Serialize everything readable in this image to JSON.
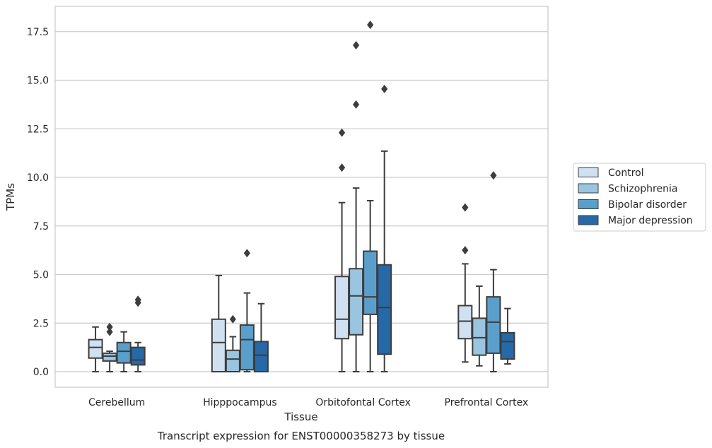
{
  "chart_data": {
    "type": "box",
    "caption": "Transcript expression for ENST00000358273 by tissue",
    "xlabel": "Tissue",
    "ylabel": "TPMs",
    "ylim": [
      -0.8,
      18.8
    ],
    "yticks": [
      0.0,
      2.5,
      5.0,
      7.5,
      10.0,
      12.5,
      15.0,
      17.5
    ],
    "ytick_labels": [
      "0.0",
      "2.5",
      "5.0",
      "7.5",
      "10.0",
      "12.5",
      "15.0",
      "17.5"
    ],
    "grid": "horizontal",
    "legend_position": "right",
    "categories": [
      "Cerebellum",
      "Hipppocampus",
      "Orbitofontal Cortex",
      "Prefrontal Cortex"
    ],
    "series": [
      {
        "name": "Control",
        "color": "#d0e0f1",
        "boxes": [
          {
            "whisker_low": 0.0,
            "q1": 0.7,
            "median": 1.25,
            "q3": 1.65,
            "whisker_high": 2.3,
            "outliers": []
          },
          {
            "whisker_low": 0.0,
            "q1": 0.0,
            "median": 1.5,
            "q3": 2.7,
            "whisker_high": 4.95,
            "outliers": []
          },
          {
            "whisker_low": 0.0,
            "q1": 1.7,
            "median": 2.7,
            "q3": 4.9,
            "whisker_high": 8.7,
            "outliers": [
              10.5,
              12.3
            ]
          },
          {
            "whisker_low": 0.5,
            "q1": 1.7,
            "median": 2.6,
            "q3": 3.4,
            "whisker_high": 5.55,
            "outliers": [
              6.25,
              8.45
            ]
          }
        ]
      },
      {
        "name": "Schizophrenia",
        "color": "#9ac5e0",
        "boxes": [
          {
            "whisker_low": 0.0,
            "q1": 0.55,
            "median": 0.8,
            "q3": 0.95,
            "whisker_high": 1.05,
            "outliers": [
              2.05,
              2.3
            ]
          },
          {
            "whisker_low": 0.0,
            "q1": 0.0,
            "median": 0.65,
            "q3": 1.1,
            "whisker_high": 1.8,
            "outliers": [
              2.7
            ]
          },
          {
            "whisker_low": 0.0,
            "q1": 1.9,
            "median": 3.9,
            "q3": 5.3,
            "whisker_high": 9.45,
            "outliers": [
              13.75,
              16.8
            ]
          },
          {
            "whisker_low": 0.3,
            "q1": 0.85,
            "median": 1.75,
            "q3": 2.75,
            "whisker_high": 4.4,
            "outliers": []
          }
        ]
      },
      {
        "name": "Bipolar disorder",
        "color": "#5a9fcb",
        "boxes": [
          {
            "whisker_low": 0.0,
            "q1": 0.45,
            "median": 1.05,
            "q3": 1.5,
            "whisker_high": 2.05,
            "outliers": []
          },
          {
            "whisker_low": 0.0,
            "q1": 0.1,
            "median": 1.65,
            "q3": 2.4,
            "whisker_high": 4.05,
            "outliers": [
              6.1
            ]
          },
          {
            "whisker_low": 0.0,
            "q1": 2.95,
            "median": 3.85,
            "q3": 6.2,
            "whisker_high": 8.8,
            "outliers": [
              17.85
            ]
          },
          {
            "whisker_low": 0.0,
            "q1": 0.95,
            "median": 2.55,
            "q3": 3.85,
            "whisker_high": 5.25,
            "outliers": [
              10.1
            ]
          }
        ]
      },
      {
        "name": "Major depression",
        "color": "#2768a6",
        "boxes": [
          {
            "whisker_low": 0.0,
            "q1": 0.35,
            "median": 0.6,
            "q3": 1.25,
            "whisker_high": 1.5,
            "outliers": [
              3.55,
              3.7
            ]
          },
          {
            "whisker_low": 0.0,
            "q1": 0.0,
            "median": 0.85,
            "q3": 1.55,
            "whisker_high": 3.5,
            "outliers": []
          },
          {
            "whisker_low": 0.0,
            "q1": 0.9,
            "median": 3.3,
            "q3": 5.5,
            "whisker_high": 11.35,
            "outliers": [
              14.55
            ]
          },
          {
            "whisker_low": 0.4,
            "q1": 0.65,
            "median": 1.55,
            "q3": 2.0,
            "whisker_high": 3.25,
            "outliers": []
          }
        ]
      }
    ]
  }
}
